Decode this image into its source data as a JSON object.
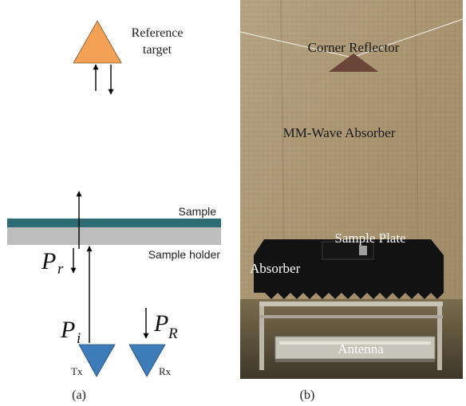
{
  "panel_a": {
    "reference_label_line1": "Reference",
    "reference_label_line2": "target",
    "sample_label": "Sample",
    "sample_holder_label": "Sample holder",
    "pr_main": "P",
    "pr_sub": "r",
    "pi_main": "P",
    "pi_sub": "i",
    "pR_main": "P",
    "pR_sub": "R",
    "tx_label": "Tx",
    "rx_label": "Rx",
    "caption": "(a)",
    "colors": {
      "reference_target": "#f4a055",
      "antenna": "#3d7cb8",
      "sample": "#2e6b74",
      "sample_holder": "#bdbdbd"
    }
  },
  "panel_b": {
    "corner_reflector_label": "Corner Reflector",
    "absorber_wall_label": "MM-Wave Absorber",
    "sample_plate_label": "Sample Plate",
    "absorber_label": "Absorber",
    "antenna_label": "Antenna",
    "caption": "(b)"
  }
}
